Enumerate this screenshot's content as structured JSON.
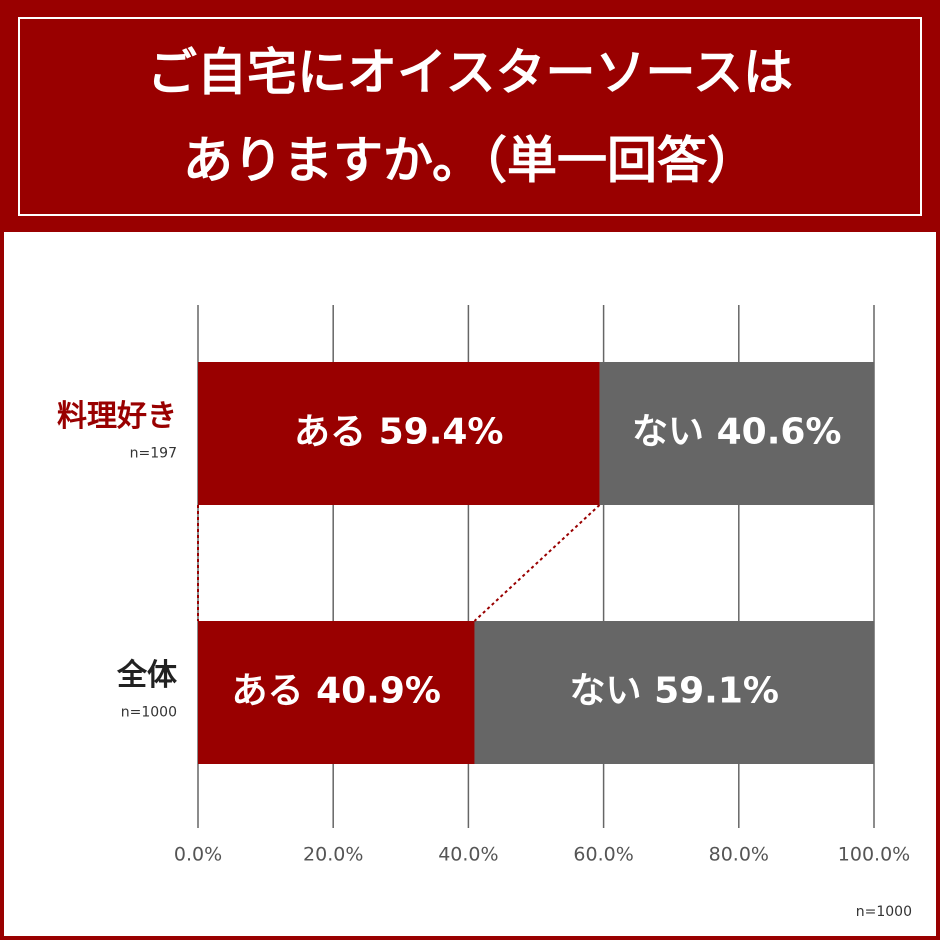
{
  "chart_data": {
    "type": "stacked-barh",
    "title": [
      "ご自宅にオイスターソースは",
      "ありますか。（単一回答）"
    ],
    "categories": [
      "料理好き",
      "全体"
    ],
    "category_notes": [
      "n=197",
      "n=1000"
    ],
    "series": [
      {
        "name": "ある",
        "color": "#990000",
        "values": [
          59.4,
          40.9
        ],
        "value_labels": [
          "59.4%",
          "40.9%"
        ]
      },
      {
        "name": "ない",
        "color": "#666666",
        "values": [
          40.6,
          59.1
        ],
        "value_labels": [
          "40.6%",
          "59.1%"
        ]
      }
    ],
    "xlim": [
      0,
      100
    ],
    "xticks": [
      {
        "value": 0,
        "label": "0.0%"
      },
      {
        "value": 20,
        "label": "20.0%"
      },
      {
        "value": 40,
        "label": "40.0%"
      },
      {
        "value": 60,
        "label": "60.0%"
      },
      {
        "value": 80,
        "label": "80.0%"
      },
      {
        "value": 100,
        "label": "100.0%"
      }
    ],
    "grid": true,
    "footnote": "n=1000"
  }
}
